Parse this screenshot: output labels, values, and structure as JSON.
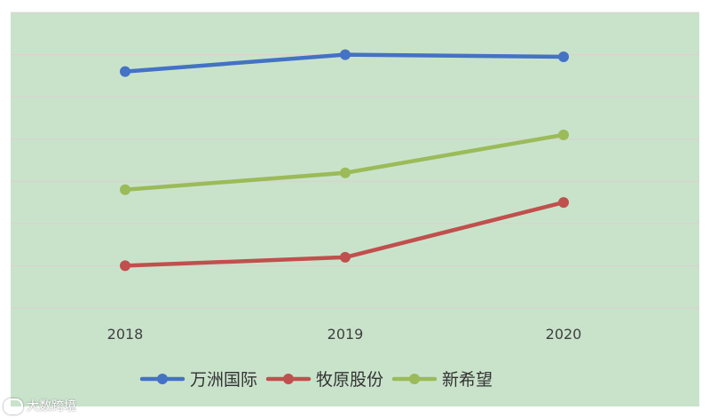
{
  "chart_data": {
    "type": "line",
    "title": "",
    "xlabel": "",
    "ylabel": "",
    "categories": [
      "2018",
      "2019",
      "2020"
    ],
    "series": [
      {
        "name": "万洲国际",
        "color": "#4472c4",
        "values": [
          86,
          90,
          89.5
        ]
      },
      {
        "name": "牧原股份",
        "color": "#c0504d",
        "values": [
          40,
          42,
          55
        ]
      },
      {
        "name": "新希望",
        "color": "#9bbb59",
        "values": [
          58,
          62,
          71
        ]
      }
    ],
    "ylim": [
      30,
      100
    ],
    "grid": true,
    "legend_position": "bottom"
  },
  "watermark": {
    "text": "大数跨境"
  }
}
